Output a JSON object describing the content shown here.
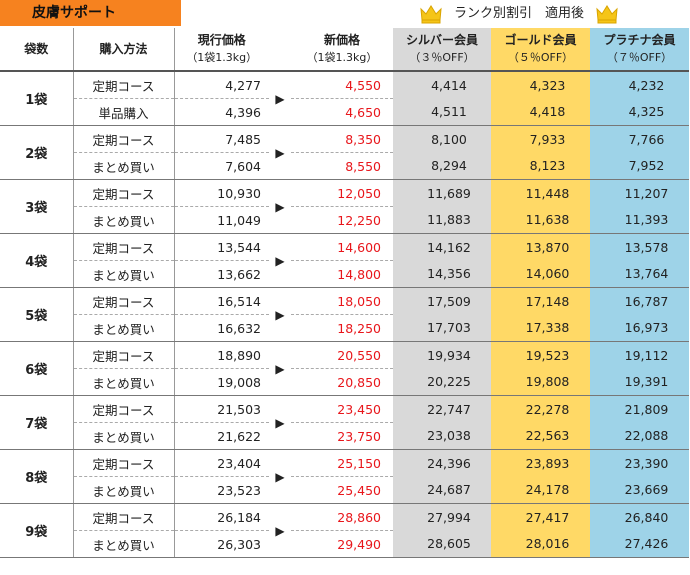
{
  "title": "皮膚サポート",
  "rank_note": "ランク別割引　適用後",
  "crown_icon": "crown-icon",
  "headers": {
    "qty": "袋数",
    "method": "購入方法",
    "current": "現行価格",
    "current_sub": "（1袋1.3kg）",
    "new": "新価格",
    "new_sub": "（1袋1.3kg）",
    "silver": "シルバー会員",
    "silver_sub": "（３％OFF）",
    "gold": "ゴールド会員",
    "gold_sub": "（５％OFF）",
    "platinum": "プラチナ会員",
    "platinum_sub": "（７％OFF）"
  },
  "arrow": "▶",
  "colors": {
    "title_bg": "#f6821f",
    "silver": "#d9d9d9",
    "gold": "#ffd966",
    "platinum": "#9ed3e8",
    "new_price": "#e8161b",
    "crown": "#f5c518"
  },
  "rows": [
    {
      "qty": "1袋",
      "items": [
        {
          "method": "定期コース",
          "current": "4,277",
          "new": "4,550",
          "silver": "4,414",
          "gold": "4,323",
          "platinum": "4,232"
        },
        {
          "method": "単品購入",
          "current": "4,396",
          "new": "4,650",
          "silver": "4,511",
          "gold": "4,418",
          "platinum": "4,325"
        }
      ]
    },
    {
      "qty": "2袋",
      "items": [
        {
          "method": "定期コース",
          "current": "7,485",
          "new": "8,350",
          "silver": "8,100",
          "gold": "7,933",
          "platinum": "7,766"
        },
        {
          "method": "まとめ買い",
          "current": "7,604",
          "new": "8,550",
          "silver": "8,294",
          "gold": "8,123",
          "platinum": "7,952"
        }
      ]
    },
    {
      "qty": "3袋",
      "items": [
        {
          "method": "定期コース",
          "current": "10,930",
          "new": "12,050",
          "silver": "11,689",
          "gold": "11,448",
          "platinum": "11,207"
        },
        {
          "method": "まとめ買い",
          "current": "11,049",
          "new": "12,250",
          "silver": "11,883",
          "gold": "11,638",
          "platinum": "11,393"
        }
      ]
    },
    {
      "qty": "4袋",
      "items": [
        {
          "method": "定期コース",
          "current": "13,544",
          "new": "14,600",
          "silver": "14,162",
          "gold": "13,870",
          "platinum": "13,578"
        },
        {
          "method": "まとめ買い",
          "current": "13,662",
          "new": "14,800",
          "silver": "14,356",
          "gold": "14,060",
          "platinum": "13,764"
        }
      ]
    },
    {
      "qty": "5袋",
      "items": [
        {
          "method": "定期コース",
          "current": "16,514",
          "new": "18,050",
          "silver": "17,509",
          "gold": "17,148",
          "platinum": "16,787"
        },
        {
          "method": "まとめ買い",
          "current": "16,632",
          "new": "18,250",
          "silver": "17,703",
          "gold": "17,338",
          "platinum": "16,973"
        }
      ]
    },
    {
      "qty": "6袋",
      "items": [
        {
          "method": "定期コース",
          "current": "18,890",
          "new": "20,550",
          "silver": "19,934",
          "gold": "19,523",
          "platinum": "19,112"
        },
        {
          "method": "まとめ買い",
          "current": "19,008",
          "new": "20,850",
          "silver": "20,225",
          "gold": "19,808",
          "platinum": "19,391"
        }
      ]
    },
    {
      "qty": "7袋",
      "items": [
        {
          "method": "定期コース",
          "current": "21,503",
          "new": "23,450",
          "silver": "22,747",
          "gold": "22,278",
          "platinum": "21,809"
        },
        {
          "method": "まとめ買い",
          "current": "21,622",
          "new": "23,750",
          "silver": "23,038",
          "gold": "22,563",
          "platinum": "22,088"
        }
      ]
    },
    {
      "qty": "8袋",
      "items": [
        {
          "method": "定期コース",
          "current": "23,404",
          "new": "25,150",
          "silver": "24,396",
          "gold": "23,893",
          "platinum": "23,390"
        },
        {
          "method": "まとめ買い",
          "current": "23,523",
          "new": "25,450",
          "silver": "24,687",
          "gold": "24,178",
          "platinum": "23,669"
        }
      ]
    },
    {
      "qty": "9袋",
      "items": [
        {
          "method": "定期コース",
          "current": "26,184",
          "new": "28,860",
          "silver": "27,994",
          "gold": "27,417",
          "platinum": "26,840"
        },
        {
          "method": "まとめ買い",
          "current": "26,303",
          "new": "29,490",
          "silver": "28,605",
          "gold": "28,016",
          "platinum": "27,426"
        }
      ]
    }
  ]
}
